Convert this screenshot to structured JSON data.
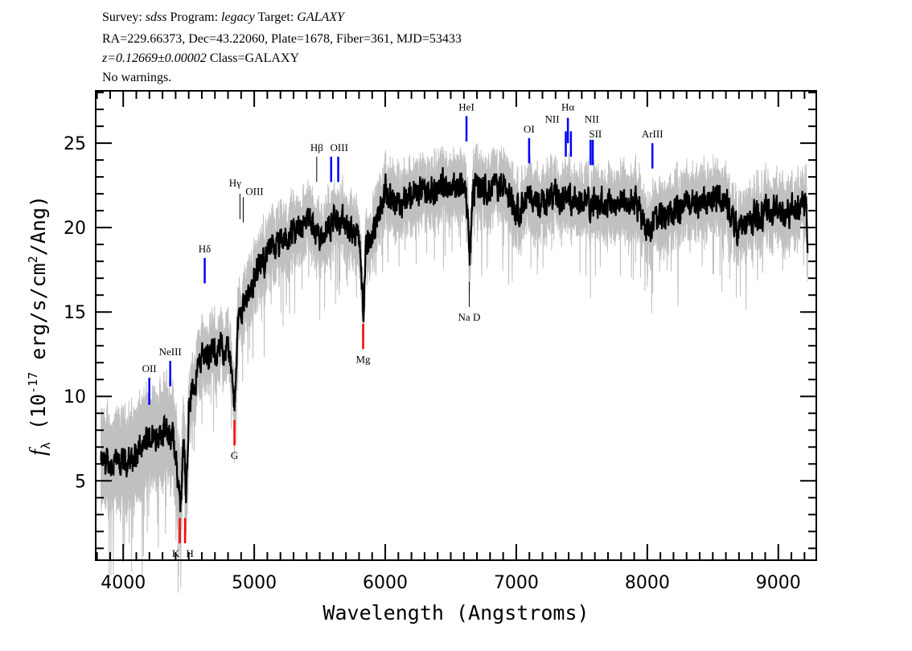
{
  "header": {
    "survey_label": "Survey:",
    "survey": "sdss",
    "program_label": "Program:",
    "program": "legacy",
    "target_label": "Target:",
    "target": "GALAXY",
    "line2": "RA=229.66373, Dec=43.22060, Plate=1678, Fiber=361, MJD=53433",
    "redshift": "z=0.12669±0.00002",
    "class": "Class=GALAXY",
    "warnings": "No warnings."
  },
  "chart_data": {
    "type": "line",
    "xlabel": "Wavelength (Angstroms)",
    "ylabel": "f_λ (10^-17 erg/s/cm^2/Ang)",
    "xlim": [
      3790,
      9290
    ],
    "ylim": [
      0.3,
      28.1
    ],
    "xticks": [
      4000,
      5000,
      6000,
      7000,
      8000,
      9000
    ],
    "yticks": [
      5,
      10,
      15,
      20,
      25
    ],
    "grid": false,
    "series_colors": {
      "flux": "#000000",
      "error_band": "#c0c0c0"
    },
    "flux_continuum": {
      "x": [
        3830,
        3900,
        4000,
        4100,
        4200,
        4300,
        4380,
        4420,
        4440,
        4460,
        4480,
        4500,
        4600,
        4700,
        4800,
        4830,
        4850,
        4870,
        4900,
        5000,
        5100,
        5200,
        5300,
        5400,
        5500,
        5600,
        5700,
        5800,
        5820,
        5835,
        5850,
        5900,
        6000,
        6100,
        6200,
        6300,
        6400,
        6500,
        6600,
        6630,
        6645,
        6660,
        6700,
        6800,
        6900,
        7000,
        7100,
        7200,
        7300,
        7400,
        7500,
        7600,
        7700,
        7800,
        7900,
        8000,
        8100,
        8200,
        8300,
        8400,
        8500,
        8600,
        8650,
        8700,
        8800,
        8900,
        9000,
        9100,
        9200,
        9215,
        9225
      ],
      "y": [
        6,
        6,
        6,
        6.5,
        7.5,
        8,
        7.5,
        5,
        3.5,
        8,
        3.5,
        9.5,
        12.5,
        12.5,
        13,
        11,
        9,
        14,
        15,
        17,
        18.5,
        19,
        19.5,
        20.5,
        19.5,
        20.5,
        20,
        19.5,
        17,
        14.5,
        19,
        19.5,
        22,
        21.5,
        22,
        22,
        22.5,
        22.5,
        22.5,
        21,
        17.5,
        22,
        22.5,
        22.5,
        22.5,
        21,
        21.5,
        21.5,
        22,
        22,
        21.5,
        21.5,
        21.5,
        21.5,
        21.5,
        20,
        20.5,
        21,
        21.5,
        21.5,
        22,
        21.5,
        20.5,
        20,
        20.5,
        21,
        21,
        21,
        21.5,
        22,
        18.5
      ]
    },
    "lines": [
      {
        "label": "OII",
        "wavelength": 4199,
        "color": "#0000ff",
        "y": [
          9.5,
          11.1
        ],
        "pos": "above"
      },
      {
        "label": "NeIII",
        "wavelength": 4359,
        "color": "#0000ff",
        "y": [
          10.6,
          12.1
        ],
        "pos": "above"
      },
      {
        "label": "Hδ",
        "wavelength": 4622,
        "color": "#0000ff",
        "y": [
          16.7,
          18.2
        ],
        "pos": "above"
      },
      {
        "label": "G",
        "wavelength": 4849,
        "color": "#ff0000",
        "y": [
          7.1,
          8.6
        ],
        "pos": "below"
      },
      {
        "label": "K",
        "wavelength": 4432,
        "color": "#ff0000",
        "y": [
          1.3,
          2.8
        ],
        "pos": "below"
      },
      {
        "label": "H",
        "wavelength": 4472,
        "color": "#ff0000",
        "y": [
          1.3,
          2.8
        ],
        "pos": "below"
      },
      {
        "label": "Hγ",
        "wavelength": 4891,
        "color": "#000000",
        "y": [
          20.5,
          22.0
        ],
        "pos": "above"
      },
      {
        "label": "OIII",
        "wavelength": 4916,
        "color": "#000000",
        "y": [
          20.3,
          21.8
        ],
        "pos": "above"
      },
      {
        "label": "Hβ",
        "wavelength": 5477,
        "color": "#000000",
        "y": [
          22.7,
          24.2
        ],
        "pos": "above"
      },
      {
        "label": "OIII",
        "wavelength": 5587,
        "color": "#0000ff",
        "y": [
          22.7,
          24.2
        ],
        "pos": "above"
      },
      {
        "label": "",
        "wavelength": 5641,
        "color": "#0000ff",
        "y": [
          22.7,
          24.2
        ],
        "pos": "above"
      },
      {
        "label": "Mg",
        "wavelength": 5831,
        "color": "#ff0000",
        "y": [
          12.8,
          14.3
        ],
        "pos": "below"
      },
      {
        "label": "Na D",
        "wavelength": 6641,
        "color": "#000000",
        "y": [
          15.3,
          16.8
        ],
        "pos": "below"
      },
      {
        "label": "HeI",
        "wavelength": 6620,
        "color": "#0000ff",
        "y": [
          25.1,
          26.6
        ],
        "pos": "above"
      },
      {
        "label": "OI",
        "wavelength": 7098,
        "color": "#0000ff",
        "y": [
          23.8,
          25.3
        ],
        "pos": "above"
      },
      {
        "label": "NII",
        "wavelength": 7378,
        "color": "#0000ff",
        "y": [
          24.2,
          25.7
        ],
        "pos": "above"
      },
      {
        "label": "Hα",
        "wavelength": 7394,
        "color": "#0000ff",
        "y": [
          25.0,
          26.5
        ],
        "pos": "above"
      },
      {
        "label": "NII",
        "wavelength": 7417,
        "color": "#0000ff",
        "y": [
          24.2,
          25.7
        ],
        "pos": "above"
      },
      {
        "label": "SII",
        "wavelength": 7567,
        "color": "#0000ff",
        "y": [
          23.7,
          25.2
        ],
        "pos": "above"
      },
      {
        "label": "",
        "wavelength": 7584,
        "color": "#0000ff",
        "y": [
          23.7,
          25.2
        ],
        "pos": "above"
      },
      {
        "label": "ArIII",
        "wavelength": 8039,
        "color": "#0000ff",
        "y": [
          23.5,
          25.0
        ],
        "pos": "above"
      }
    ]
  }
}
